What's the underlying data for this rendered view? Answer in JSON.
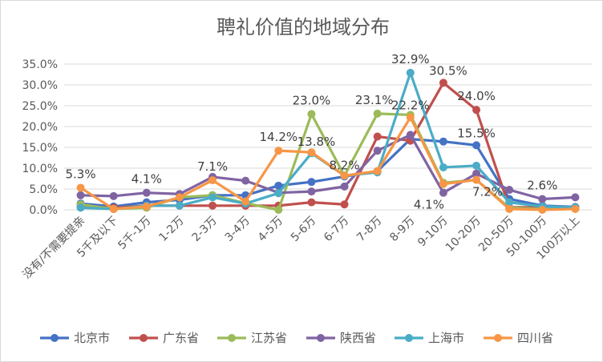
{
  "chart_data": {
    "type": "line",
    "title": "聘礼价值的地域分布",
    "categories": [
      "没有/不需要提亲",
      "5千及以下",
      "5千-1万",
      "1-2万",
      "2-3万",
      "3-4万",
      "4-5万",
      "5-6万",
      "6-7万",
      "7-8万",
      "8-9万",
      "9-10万",
      "10-20万",
      "20-50万",
      "50-100万",
      "100万以上"
    ],
    "ylim": [
      0,
      35
    ],
    "y_ticks": [
      "0.0%",
      "5.0%",
      "10.0%",
      "15.0%",
      "20.0%",
      "25.0%",
      "30.0%",
      "35.0%"
    ],
    "grid": true,
    "legend_position": "bottom",
    "series": [
      {
        "name": "北京市",
        "color": "#4472C4",
        "values": [
          1.5,
          0.8,
          1.8,
          2.4,
          3.5,
          3.5,
          5.8,
          6.7,
          8.0,
          9.3,
          17.0,
          16.4,
          15.5,
          2.6,
          1.0,
          0.7
        ]
      },
      {
        "name": "广东省",
        "color": "#C0504D",
        "values": [
          0.8,
          0.5,
          1.0,
          1.0,
          1.0,
          1.0,
          1.0,
          1.8,
          1.3,
          17.6,
          16.6,
          30.5,
          24.0,
          0.6,
          0.6,
          0.6
        ]
      },
      {
        "name": "江苏省",
        "color": "#9BBB59",
        "values": [
          1.3,
          0.2,
          0.5,
          3.0,
          3.5,
          1.6,
          0.0,
          23.0,
          8.2,
          23.1,
          22.8,
          6.5,
          7.2,
          0.5,
          0.2,
          0.3
        ]
      },
      {
        "name": "陕西省",
        "color": "#8064A2",
        "values": [
          3.5,
          3.3,
          4.1,
          3.8,
          7.9,
          7.0,
          4.1,
          4.4,
          5.6,
          14.2,
          18.0,
          4.1,
          8.7,
          4.8,
          2.6,
          3.0
        ]
      },
      {
        "name": "上海市",
        "color": "#4BACC6",
        "values": [
          0.5,
          0.2,
          1.0,
          1.0,
          3.0,
          1.5,
          4.0,
          13.6,
          8.2,
          9.0,
          32.9,
          10.2,
          10.6,
          1.8,
          0.8,
          0.6
        ]
      },
      {
        "name": "四川省",
        "color": "#F79646",
        "values": [
          5.3,
          0.2,
          0.8,
          3.0,
          7.1,
          2.0,
          14.2,
          13.8,
          8.2,
          9.3,
          22.2,
          6.2,
          7.2,
          0.2,
          0.0,
          0.2
        ]
      }
    ],
    "data_labels": [
      {
        "text": "5.3%",
        "category": "没有/不需要提亲",
        "value": 5.3
      },
      {
        "text": "4.1%",
        "category": "5千-1万",
        "value": 4.1
      },
      {
        "text": "7.1%",
        "category": "2-3万",
        "value": 7.1
      },
      {
        "text": "14.2%",
        "category": "4-5万",
        "value": 14.2
      },
      {
        "text": "23.0%",
        "category": "5-6万",
        "value": 23.0
      },
      {
        "text": "13.8%",
        "category": "5-6万",
        "value": 13.8
      },
      {
        "text": "8.2%",
        "category": "6-7万",
        "value": 8.2
      },
      {
        "text": "23.1%",
        "category": "7-8万",
        "value": 23.1
      },
      {
        "text": "32.9%",
        "category": "8-9万",
        "value": 32.9
      },
      {
        "text": "22.2%",
        "category": "8-9万",
        "value": 22.2
      },
      {
        "text": "30.5%",
        "category": "9-10万",
        "value": 30.5
      },
      {
        "text": "4.1%",
        "category": "9-10万",
        "value": 4.1
      },
      {
        "text": "24.0%",
        "category": "10-20万",
        "value": 24.0
      },
      {
        "text": "7.2%",
        "category": "10-20万",
        "value": 7.2
      },
      {
        "text": "15.5%",
        "category": "10-20万",
        "value": 15.5
      },
      {
        "text": "2.6%",
        "category": "50-100万",
        "value": 2.6
      }
    ]
  }
}
